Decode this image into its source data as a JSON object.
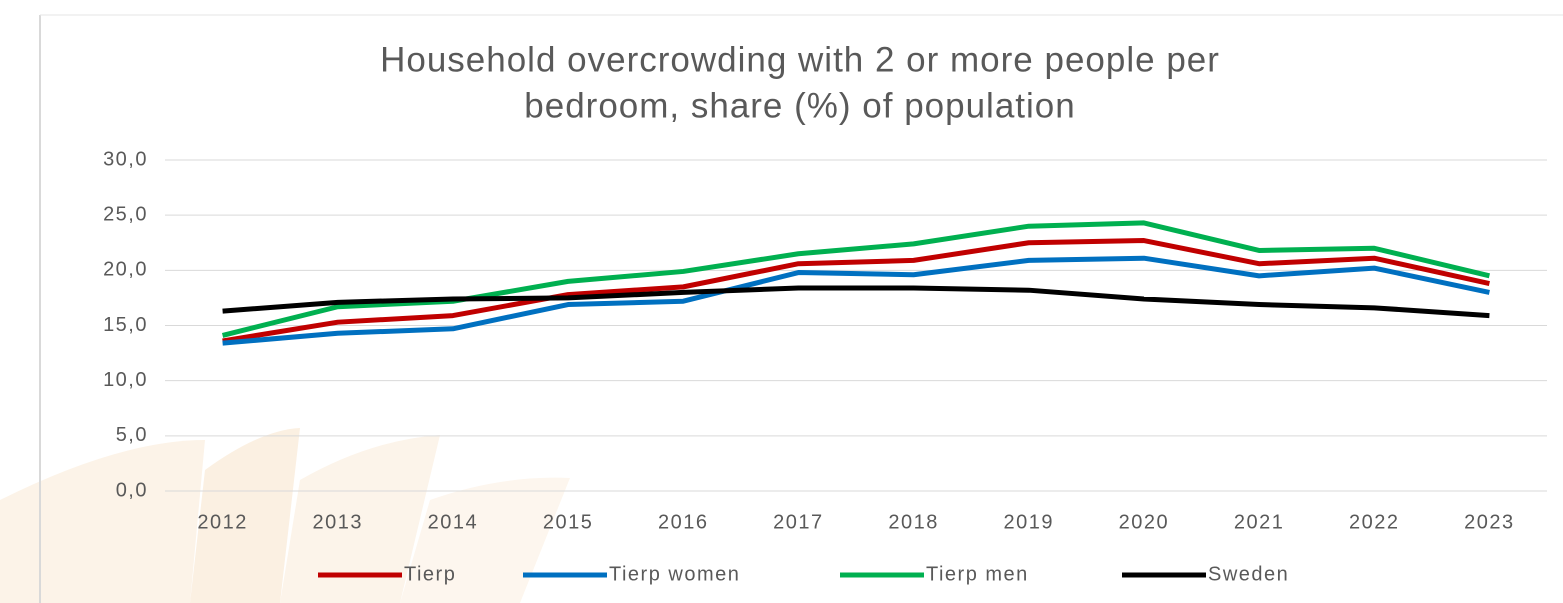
{
  "chart_data": {
    "type": "line",
    "title": [
      "Household overcrowding with 2 or more people per",
      "bedroom, share (%) of population"
    ],
    "categories": [
      "2012",
      "2013",
      "2014",
      "2015",
      "2016",
      "2017",
      "2018",
      "2019",
      "2020",
      "2021",
      "2022",
      "2023"
    ],
    "series": [
      {
        "name": "Tierp",
        "color": "#c00000",
        "values": [
          13.6,
          15.3,
          15.9,
          17.8,
          18.5,
          20.6,
          20.9,
          22.5,
          22.7,
          20.6,
          21.1,
          18.8
        ]
      },
      {
        "name": "Tierp women",
        "color": "#0070c0",
        "values": [
          13.4,
          14.3,
          14.7,
          16.9,
          17.2,
          19.8,
          19.6,
          20.9,
          21.1,
          19.5,
          20.2,
          18.0
        ]
      },
      {
        "name": "Tierp men",
        "color": "#00b050",
        "values": [
          14.1,
          16.7,
          17.2,
          19.0,
          19.9,
          21.5,
          22.4,
          24.0,
          24.3,
          21.8,
          22.0,
          19.5
        ]
      },
      {
        "name": "Sweden",
        "color": "#000000",
        "values": [
          16.3,
          17.1,
          17.4,
          17.5,
          18.0,
          18.4,
          18.4,
          18.2,
          17.4,
          16.9,
          16.6,
          15.9
        ]
      }
    ],
    "ylim": [
      0,
      30
    ],
    "yticks": [
      {
        "value": 0,
        "label": "0,0"
      },
      {
        "value": 5,
        "label": "5,0"
      },
      {
        "value": 10,
        "label": "10,0"
      },
      {
        "value": 15,
        "label": "15,0"
      },
      {
        "value": 20,
        "label": "20,0"
      },
      {
        "value": 25,
        "label": "25,0"
      },
      {
        "value": 30,
        "label": "30,0"
      }
    ],
    "grid": true,
    "legend": "bottom"
  }
}
